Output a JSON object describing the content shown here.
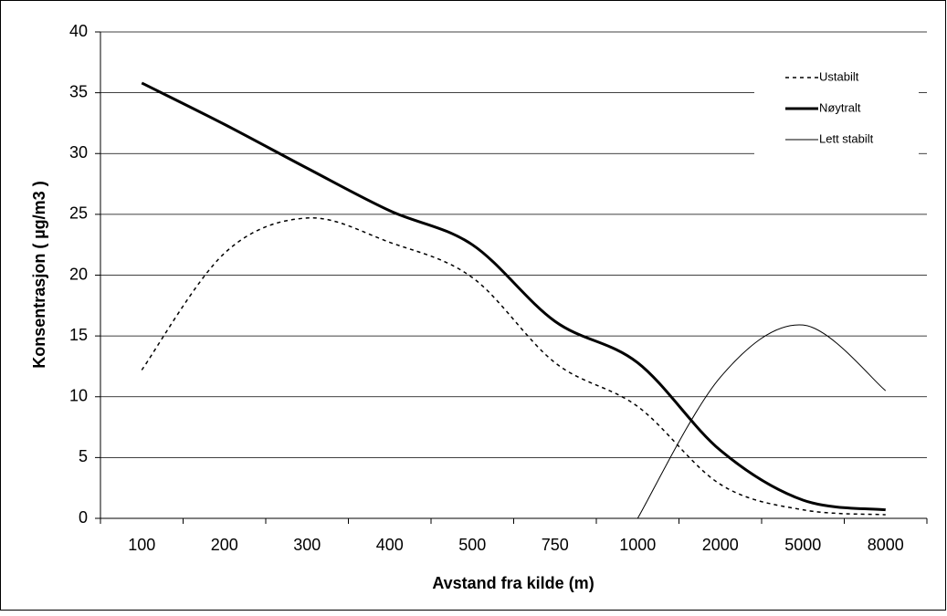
{
  "chart_data": {
    "type": "line",
    "x_label": "Avstand fra kilde (m)",
    "y_label": "Konsentrasjon ( µg/m3 )",
    "categories": [
      "100",
      "200",
      "300",
      "400",
      "500",
      "750",
      "1000",
      "2000",
      "5000",
      "8000"
    ],
    "series": [
      {
        "name": "Ustabilt",
        "color": "#000000",
        "dash": "4,4",
        "width": 1.5,
        "values": [
          12.2,
          21.8,
          24.7,
          22.7,
          19.8,
          12.8,
          9.2,
          2.8,
          0.7,
          0.3
        ]
      },
      {
        "name": "Nøytralt",
        "color": "#000000",
        "dash": "none",
        "width": 3,
        "values": [
          35.8,
          32.4,
          28.8,
          25.3,
          22.5,
          16.2,
          12.8,
          5.6,
          1.5,
          0.7
        ]
      },
      {
        "name": "Lett stabilt",
        "color": "#000000",
        "dash": "none",
        "width": 1,
        "values": [
          null,
          null,
          null,
          null,
          null,
          null,
          0,
          11.6,
          15.9,
          10.5
        ]
      }
    ],
    "ylim": [
      0,
      40
    ],
    "yticks": [
      0,
      5,
      10,
      15,
      20,
      25,
      30,
      35,
      40
    ],
    "grid": true,
    "smooth": true,
    "legend": "top-right"
  }
}
